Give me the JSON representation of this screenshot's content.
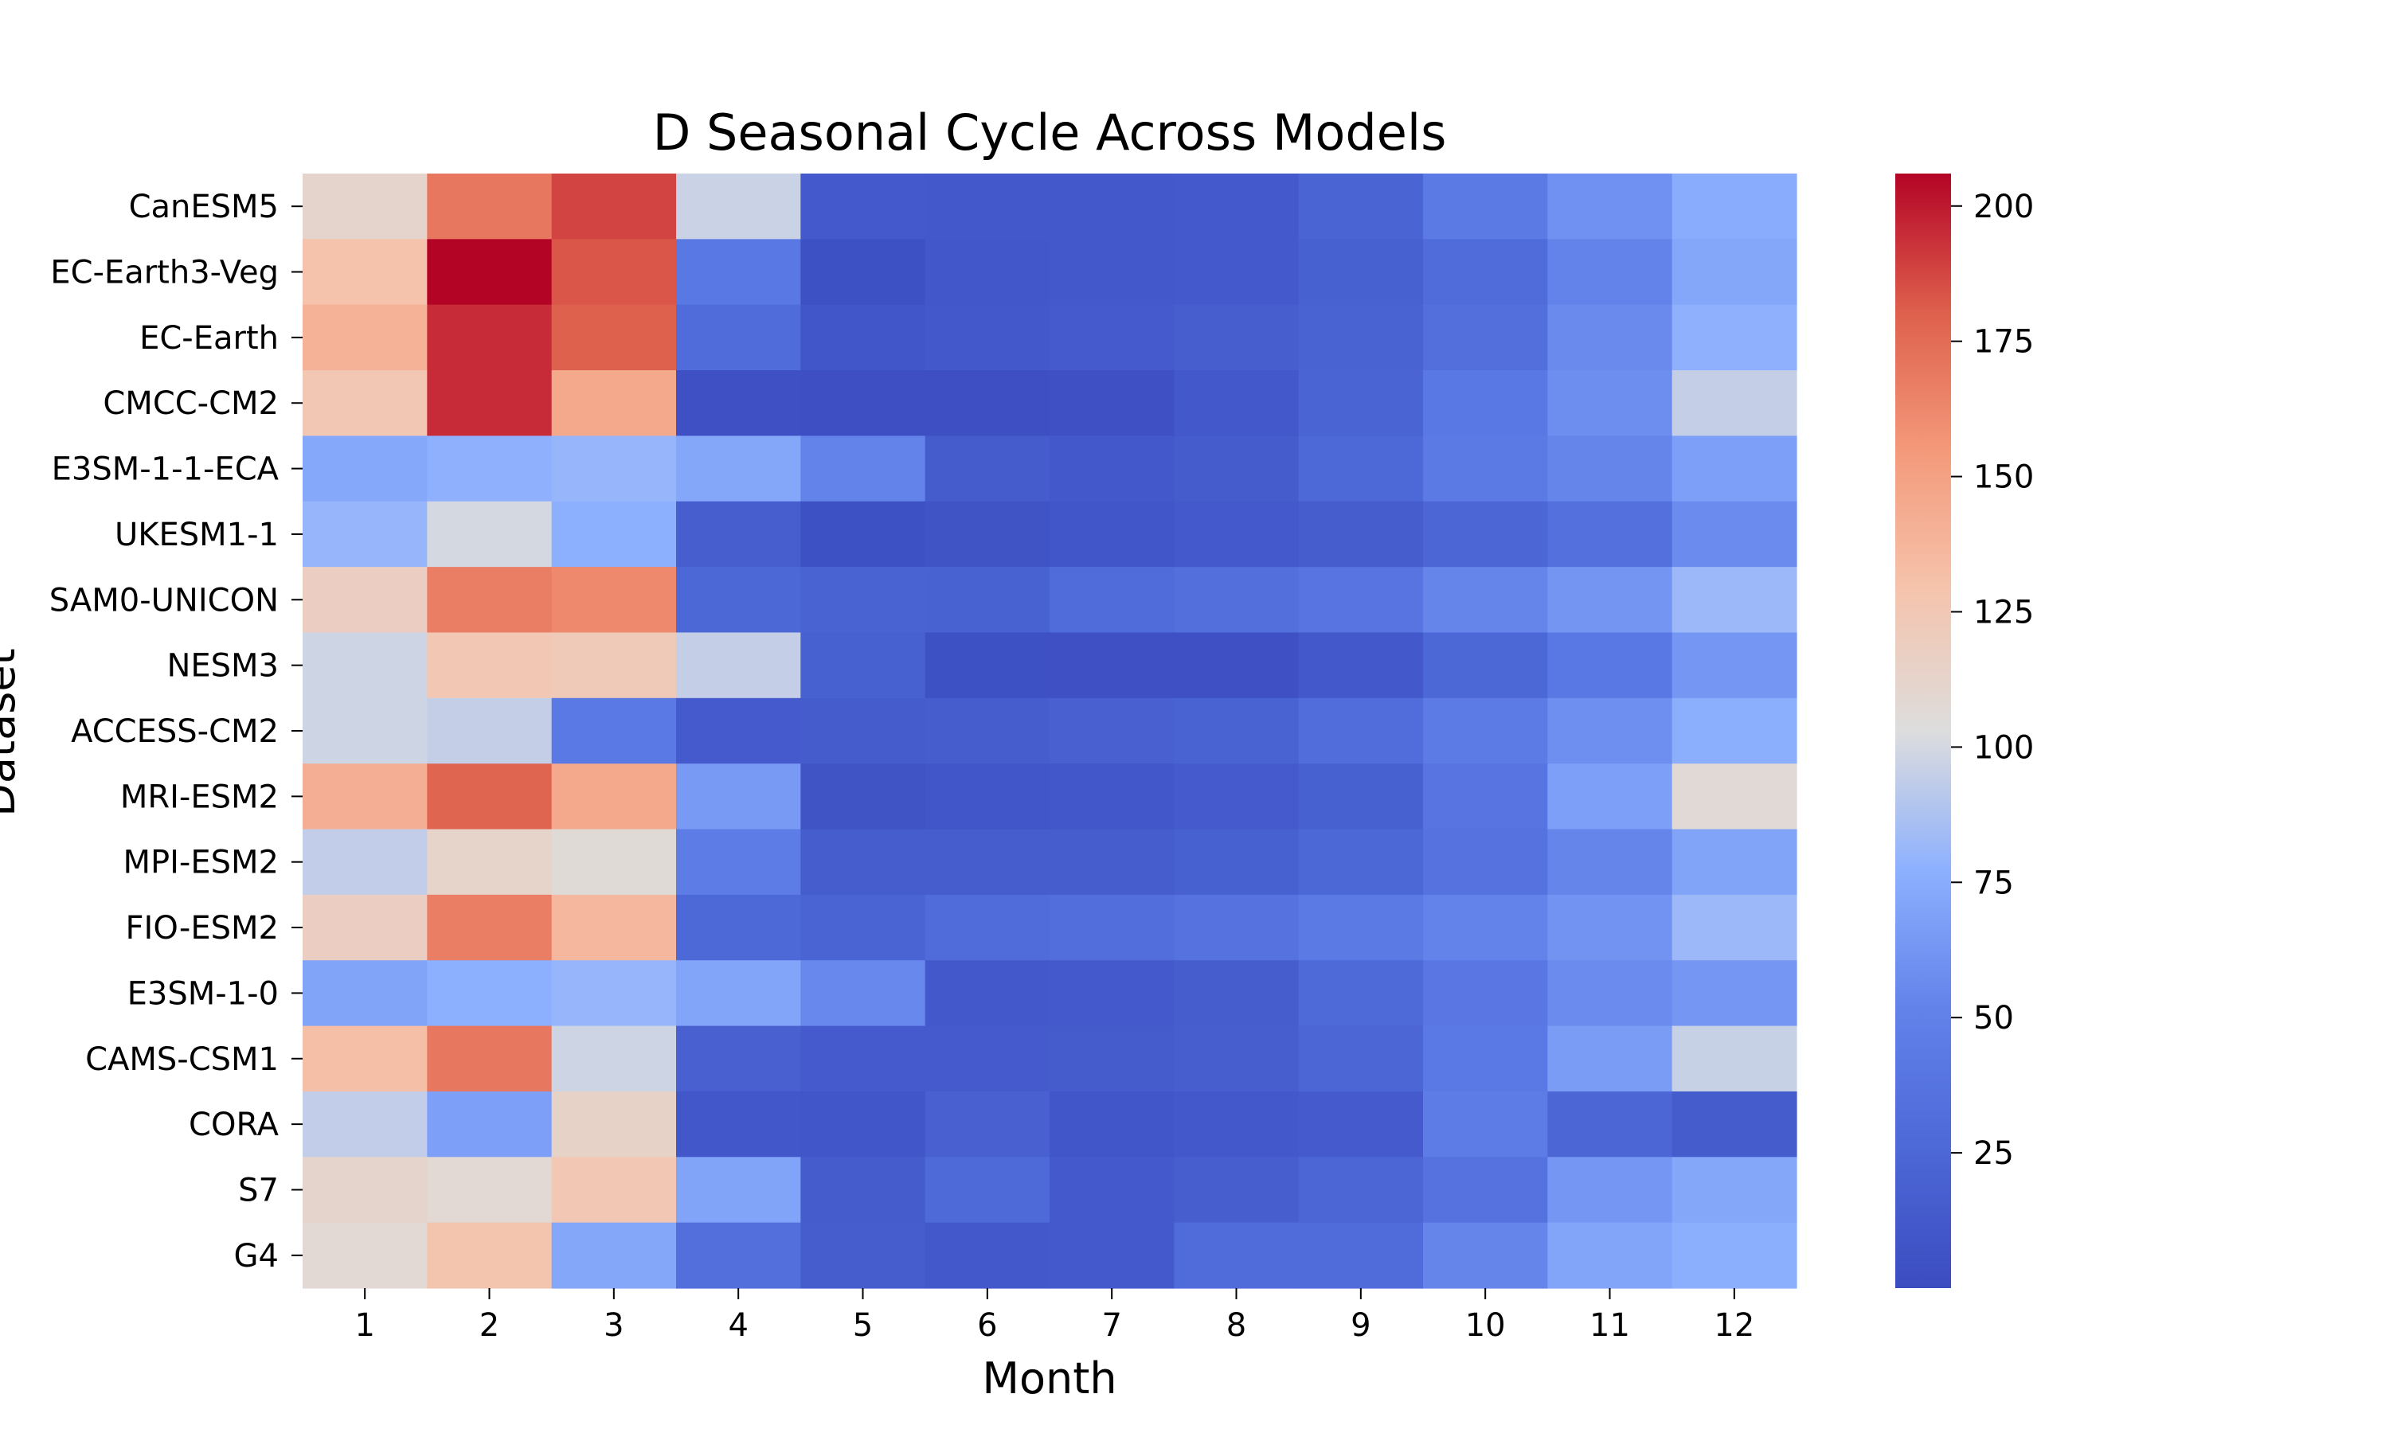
{
  "chart_data": {
    "type": "heatmap",
    "title": "D Seasonal Cycle Across Models",
    "xlabel": "Month",
    "ylabel": "Dataset",
    "x": [
      "1",
      "2",
      "3",
      "4",
      "5",
      "6",
      "7",
      "8",
      "9",
      "10",
      "11",
      "12"
    ],
    "y": [
      "CanESM5",
      "EC-Earth3-Veg",
      "EC-Earth",
      "CMCC-CM2",
      "E3SM-1-1-ECA",
      "UKESM1-1",
      "SAM0-UNICON",
      "NESM3",
      "ACCESS-CM2",
      "MRI-ESM2",
      "MPI-ESM2",
      "FIO-ESM2",
      "E3SM-1-0",
      "CAMS-CSM1",
      "CORA",
      "S7",
      "G4"
    ],
    "values": [
      [
        112,
        170,
        188,
        97,
        13,
        12,
        12,
        13,
        22,
        44,
        60,
        75
      ],
      [
        130,
        206,
        183,
        42,
        5,
        10,
        11,
        13,
        19,
        30,
        52,
        72
      ],
      [
        140,
        195,
        180,
        30,
        9,
        12,
        14,
        17,
        21,
        33,
        56,
        78
      ],
      [
        125,
        195,
        145,
        4,
        3,
        3,
        4,
        11,
        22,
        42,
        58,
        95
      ],
      [
        73,
        78,
        80,
        72,
        52,
        15,
        12,
        15,
        26,
        44,
        53,
        68
      ],
      [
        80,
        100,
        77,
        17,
        5,
        7,
        9,
        13,
        16,
        24,
        34,
        57
      ],
      [
        118,
        167,
        162,
        25,
        21,
        20,
        30,
        33,
        38,
        53,
        62,
        82
      ],
      [
        98,
        125,
        123,
        95,
        19,
        5,
        4,
        4,
        11,
        25,
        42,
        63
      ],
      [
        98,
        95,
        43,
        14,
        15,
        16,
        18,
        21,
        31,
        45,
        59,
        76
      ],
      [
        142,
        178,
        145,
        65,
        7,
        9,
        10,
        14,
        19,
        38,
        68,
        107
      ],
      [
        94,
        113,
        106,
        46,
        16,
        16,
        16,
        19,
        25,
        36,
        53,
        70
      ],
      [
        118,
        167,
        137,
        26,
        22,
        30,
        32,
        36,
        44,
        52,
        61,
        82
      ],
      [
        70,
        77,
        80,
        71,
        55,
        12,
        13,
        16,
        27,
        40,
        57,
        63
      ],
      [
        132,
        170,
        98,
        18,
        14,
        14,
        15,
        17,
        24,
        43,
        66,
        96
      ],
      [
        94,
        68,
        114,
        10,
        9,
        18,
        9,
        11,
        14,
        46,
        24,
        15
      ],
      [
        112,
        108,
        125,
        70,
        15,
        27,
        13,
        17,
        24,
        36,
        63,
        72
      ],
      [
        108,
        128,
        72,
        33,
        16,
        11,
        13,
        30,
        30,
        53,
        71,
        76
      ]
    ],
    "colormap": "coolwarm",
    "vmin": 0,
    "vmax": 206,
    "colorbar_ticks": [
      25,
      50,
      75,
      100,
      125,
      150,
      175,
      200
    ],
    "grid": false,
    "legend": "colorbar-right"
  }
}
